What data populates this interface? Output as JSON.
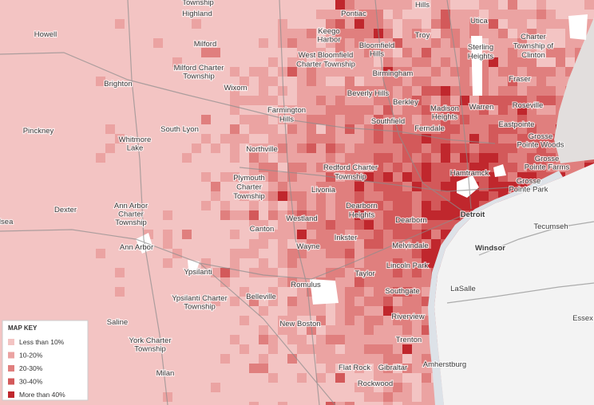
{
  "labels": [
    {
      "lines": [
        "Township"
      ]
    },
    {
      "lines": [
        "Highland"
      ]
    },
    {
      "lines": [
        "Pontiac"
      ]
    },
    {
      "lines": [
        "Hills"
      ]
    },
    {
      "lines": [
        "Utica"
      ]
    },
    {
      "lines": [
        "Howell"
      ]
    },
    {
      "lines": [
        "Keego",
        "Harbor"
      ]
    },
    {
      "lines": [
        "Troy"
      ]
    },
    {
      "lines": [
        "Charter",
        "Township of",
        "Clinton"
      ]
    },
    {
      "lines": [
        "Milford"
      ]
    },
    {
      "lines": [
        "Bloomfield",
        "Hills"
      ]
    },
    {
      "lines": [
        "West Bloomfield",
        "Charter Township"
      ]
    },
    {
      "lines": [
        "Sterling",
        "Heights"
      ]
    },
    {
      "lines": [
        "Milford Charter",
        "Township"
      ]
    },
    {
      "lines": [
        "Birmingham"
      ]
    },
    {
      "lines": [
        "Fraser"
      ]
    },
    {
      "lines": [
        "Brighton"
      ]
    },
    {
      "lines": [
        "Wixom"
      ]
    },
    {
      "lines": [
        "Beverly Hills"
      ]
    },
    {
      "lines": [
        "Berkley"
      ]
    },
    {
      "lines": [
        "Roseville"
      ]
    },
    {
      "lines": [
        "Farmington",
        "Hills"
      ]
    },
    {
      "lines": [
        "Madison",
        "Heights"
      ]
    },
    {
      "lines": [
        "Warren"
      ]
    },
    {
      "lines": [
        "Southfield"
      ]
    },
    {
      "lines": [
        "Ferndale"
      ]
    },
    {
      "lines": [
        "Eastpointe"
      ]
    },
    {
      "lines": [
        "Grosse",
        "Pointe Woods"
      ]
    },
    {
      "lines": [
        "Pinckney"
      ]
    },
    {
      "lines": [
        "South Lyon"
      ]
    },
    {
      "lines": [
        "Whitmore",
        "Lake"
      ]
    },
    {
      "lines": [
        "Northville"
      ]
    },
    {
      "lines": [
        "Grosse",
        "Pointe Farms"
      ]
    },
    {
      "lines": [
        "Redford Charter",
        "Township"
      ]
    },
    {
      "lines": [
        "Hamtramck"
      ]
    },
    {
      "lines": [
        "Plymouth",
        "Charter",
        "Township"
      ]
    },
    {
      "lines": [
        "Grosse",
        "Pointe Park"
      ]
    },
    {
      "lines": [
        "Livonia"
      ]
    },
    {
      "lines": [
        "Ann Arbor",
        "Charter",
        "Township"
      ]
    },
    {
      "lines": [
        "Dexter"
      ]
    },
    {
      "lines": [
        "Dearborn",
        "Heights"
      ]
    },
    {
      "lines": [
        "Detroit"
      ]
    },
    {
      "lines": [
        "Westland"
      ]
    },
    {
      "lines": [
        "Dearborn"
      ]
    },
    {
      "lines": [
        "Tecumseh"
      ]
    },
    {
      "lines": [
        "Canton"
      ]
    },
    {
      "lines": [
        "Inkster"
      ]
    },
    {
      "lines": [
        "elsea"
      ]
    },
    {
      "lines": [
        "Wayne"
      ]
    },
    {
      "lines": [
        "Melvindale"
      ]
    },
    {
      "lines": [
        "Windsor"
      ]
    },
    {
      "lines": [
        "Ann Arbor"
      ]
    },
    {
      "lines": [
        "Lincoln Park"
      ]
    },
    {
      "lines": [
        "Ypsilanti"
      ]
    },
    {
      "lines": [
        "Taylor"
      ]
    },
    {
      "lines": [
        "Romulus"
      ]
    },
    {
      "lines": [
        "LaSalle"
      ]
    },
    {
      "lines": [
        "Southgate"
      ]
    },
    {
      "lines": [
        "Ypsilanti Charter",
        "Township"
      ]
    },
    {
      "lines": [
        "Belleville"
      ]
    },
    {
      "lines": [
        "Riverview"
      ]
    },
    {
      "lines": [
        "Essex"
      ]
    },
    {
      "lines": [
        "Saline"
      ]
    },
    {
      "lines": [
        "New Boston"
      ]
    },
    {
      "lines": [
        "York Charter",
        "Township"
      ]
    },
    {
      "lines": [
        "Trenton"
      ]
    },
    {
      "lines": [
        "Amherstburg"
      ]
    },
    {
      "lines": [
        "Flat Rock"
      ]
    },
    {
      "lines": [
        "Gibraltar"
      ]
    },
    {
      "lines": [
        "Milan"
      ]
    },
    {
      "lines": [
        "Rockwood"
      ]
    }
  ],
  "map_key": {
    "title": "MAP KEY",
    "entries": [
      {
        "label": "Less than 10%",
        "color": "#f3c4c3"
      },
      {
        "label": "10-20%",
        "color": "#eba3a2"
      },
      {
        "label": "20-30%",
        "color": "#e07f7e"
      },
      {
        "label": "30-40%",
        "color": "#d3595a"
      },
      {
        "label": "More than 40%",
        "color": "#c0272d"
      }
    ]
  }
}
